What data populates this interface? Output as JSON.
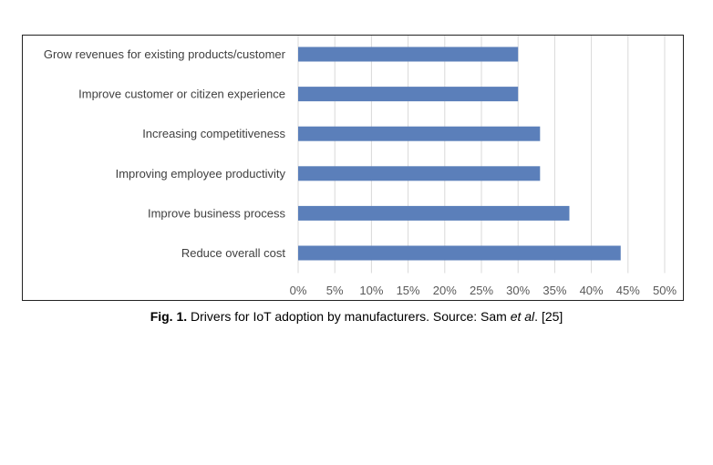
{
  "chart_data": {
    "type": "bar",
    "orientation": "horizontal",
    "categories": [
      "Grow revenues for existing products/customer",
      "Improve customer or citizen experience",
      "Increasing competitiveness",
      "Improving employee productivity",
      "Improve business process",
      "Reduce overall cost"
    ],
    "values": [
      0.3,
      0.3,
      0.33,
      0.33,
      0.37,
      0.44
    ],
    "xlim": [
      0,
      0.5
    ],
    "x_ticks": [
      0,
      0.05,
      0.1,
      0.15,
      0.2,
      0.25,
      0.3,
      0.35,
      0.4,
      0.45,
      0.5
    ],
    "x_tick_labels": [
      "0%",
      "5%",
      "10%",
      "15%",
      "20%",
      "25%",
      "30%",
      "35%",
      "40%",
      "45%",
      "50%"
    ],
    "grid": "vertical",
    "legend": "none",
    "bar_color": "#5b7fba"
  },
  "caption": {
    "label": "Fig. 1.",
    "text_before": " Drivers for IoT adoption by manufacturers. Source: Sam ",
    "italic": "et al",
    "text_after": ". [25]"
  }
}
